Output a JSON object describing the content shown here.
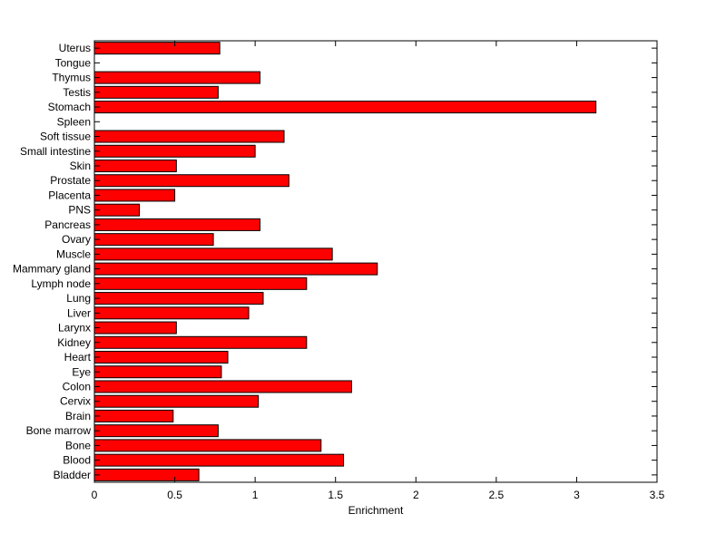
{
  "chart_data": {
    "type": "bar",
    "orientation": "horizontal",
    "title": "",
    "xlabel": "Enrichment",
    "ylabel": "",
    "xlim": [
      0,
      3.5
    ],
    "xticks": [
      0,
      0.5,
      1,
      1.5,
      2,
      2.5,
      3,
      3.5
    ],
    "xtick_labels": [
      "0",
      "0.5",
      "1",
      "1.5",
      "2",
      "2.5",
      "3",
      "3.5"
    ],
    "grid": false,
    "legend": "none",
    "bar_color": "#ff0000",
    "categories": [
      "Bladder",
      "Blood",
      "Bone",
      "Bone marrow",
      "Brain",
      "Cervix",
      "Colon",
      "Eye",
      "Heart",
      "Kidney",
      "Larynx",
      "Liver",
      "Lung",
      "Lymph node",
      "Mammary gland",
      "Muscle",
      "Ovary",
      "Pancreas",
      "PNS",
      "Placenta",
      "Prostate",
      "Skin",
      "Small intestine",
      "Soft tissue",
      "Spleen",
      "Stomach",
      "Testis",
      "Thymus",
      "Tongue",
      "Uterus"
    ],
    "values": [
      0.65,
      1.55,
      1.41,
      0.77,
      0.49,
      1.02,
      1.6,
      0.79,
      0.83,
      1.32,
      0.51,
      0.96,
      1.05,
      1.32,
      1.76,
      1.48,
      0.74,
      1.03,
      0.28,
      0.5,
      1.21,
      0.51,
      1.0,
      1.18,
      0,
      3.12,
      0.77,
      1.03,
      0,
      0.78
    ]
  }
}
